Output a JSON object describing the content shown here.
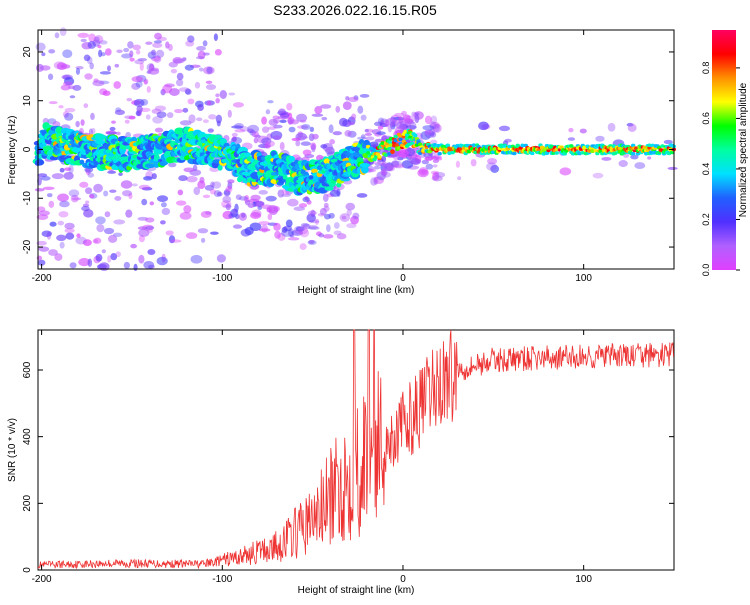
{
  "title": "S233.2026.022.16.15.R05",
  "colors": {
    "line": "#ee3333",
    "axis": "#000000",
    "background": "#ffffff",
    "colorbar_stops": [
      "#e040ff",
      "#b060ff",
      "#5030ff",
      "#2060ff",
      "#00e0ff",
      "#00ffa0",
      "#00ff00",
      "#ffff00",
      "#ff9000",
      "#ff0000",
      "#ff0060"
    ]
  },
  "chart_data": [
    {
      "type": "heatmap",
      "title": "S233.2026.022.16.15.R05",
      "xlabel": "Height of straight line (km)",
      "ylabel": "Frequency (Hz)",
      "xlim": [
        -202,
        150
      ],
      "ylim": [
        -24.5,
        24.5
      ],
      "xticks": [
        -200,
        -100,
        0,
        100
      ],
      "xtick_labels": [
        "-200",
        "-100",
        "0",
        "100"
      ],
      "yticks": [
        20,
        10,
        0,
        -10,
        -20
      ],
      "ytick_labels": [
        "20",
        "10",
        "0",
        "-10",
        "-20"
      ],
      "colorbar": {
        "label": "Normalized spectral amplitude",
        "range": [
          0,
          0.95
        ],
        "ticks": [
          0.0,
          0.2,
          0.4,
          0.6,
          0.8
        ],
        "tick_labels": [
          "0.0",
          "0.2",
          "0.4",
          "0.6",
          "0.8"
        ]
      },
      "ridge": [
        {
          "x": -200,
          "f": 2
        },
        {
          "x": -180,
          "f": 0
        },
        {
          "x": -150,
          "f": -1
        },
        {
          "x": -120,
          "f": 1
        },
        {
          "x": -100,
          "f": -1
        },
        {
          "x": -85,
          "f": -4
        },
        {
          "x": -70,
          "f": -4
        },
        {
          "x": -55,
          "f": -6
        },
        {
          "x": -40,
          "f": -5
        },
        {
          "x": -30,
          "f": -3
        },
        {
          "x": -20,
          "f": -1
        },
        {
          "x": -10,
          "f": 0
        },
        {
          "x": 0,
          "f": 2
        },
        {
          "x": 5,
          "f": 2.5
        },
        {
          "x": 10,
          "f": 0.5
        },
        {
          "x": 20,
          "f": 0
        },
        {
          "x": 150,
          "f": 0
        }
      ]
    },
    {
      "type": "line",
      "xlabel": "Height of straight line (km)",
      "ylabel": "SNR (10 * v/v)",
      "xlim": [
        -202,
        150
      ],
      "ylim": [
        0,
        720
      ],
      "xticks": [
        -200,
        -100,
        0,
        100
      ],
      "xtick_labels": [
        "-200",
        "-100",
        "0",
        "100"
      ],
      "yticks": [
        0,
        200,
        400,
        600
      ],
      "ytick_labels": [
        "0",
        "200",
        "400",
        "600"
      ],
      "series": [
        {
          "name": "SNR",
          "trend": [
            {
              "x": -202,
              "y": 15
            },
            {
              "x": -160,
              "y": 20
            },
            {
              "x": -110,
              "y": 18
            },
            {
              "x": -90,
              "y": 40
            },
            {
              "x": -70,
              "y": 70
            },
            {
              "x": -50,
              "y": 150
            },
            {
              "x": -30,
              "y": 280
            },
            {
              "x": -20,
              "y": 330
            },
            {
              "x": -10,
              "y": 380
            },
            {
              "x": 0,
              "y": 430
            },
            {
              "x": 10,
              "y": 490
            },
            {
              "x": 20,
              "y": 560
            },
            {
              "x": 30,
              "y": 600
            },
            {
              "x": 50,
              "y": 630
            },
            {
              "x": 100,
              "y": 640
            },
            {
              "x": 150,
              "y": 645
            }
          ],
          "spikes": [
            {
              "x": -27,
              "y": 720
            },
            {
              "x": -19,
              "y": 720
            },
            {
              "x": -16,
              "y": 720
            }
          ]
        }
      ]
    }
  ]
}
